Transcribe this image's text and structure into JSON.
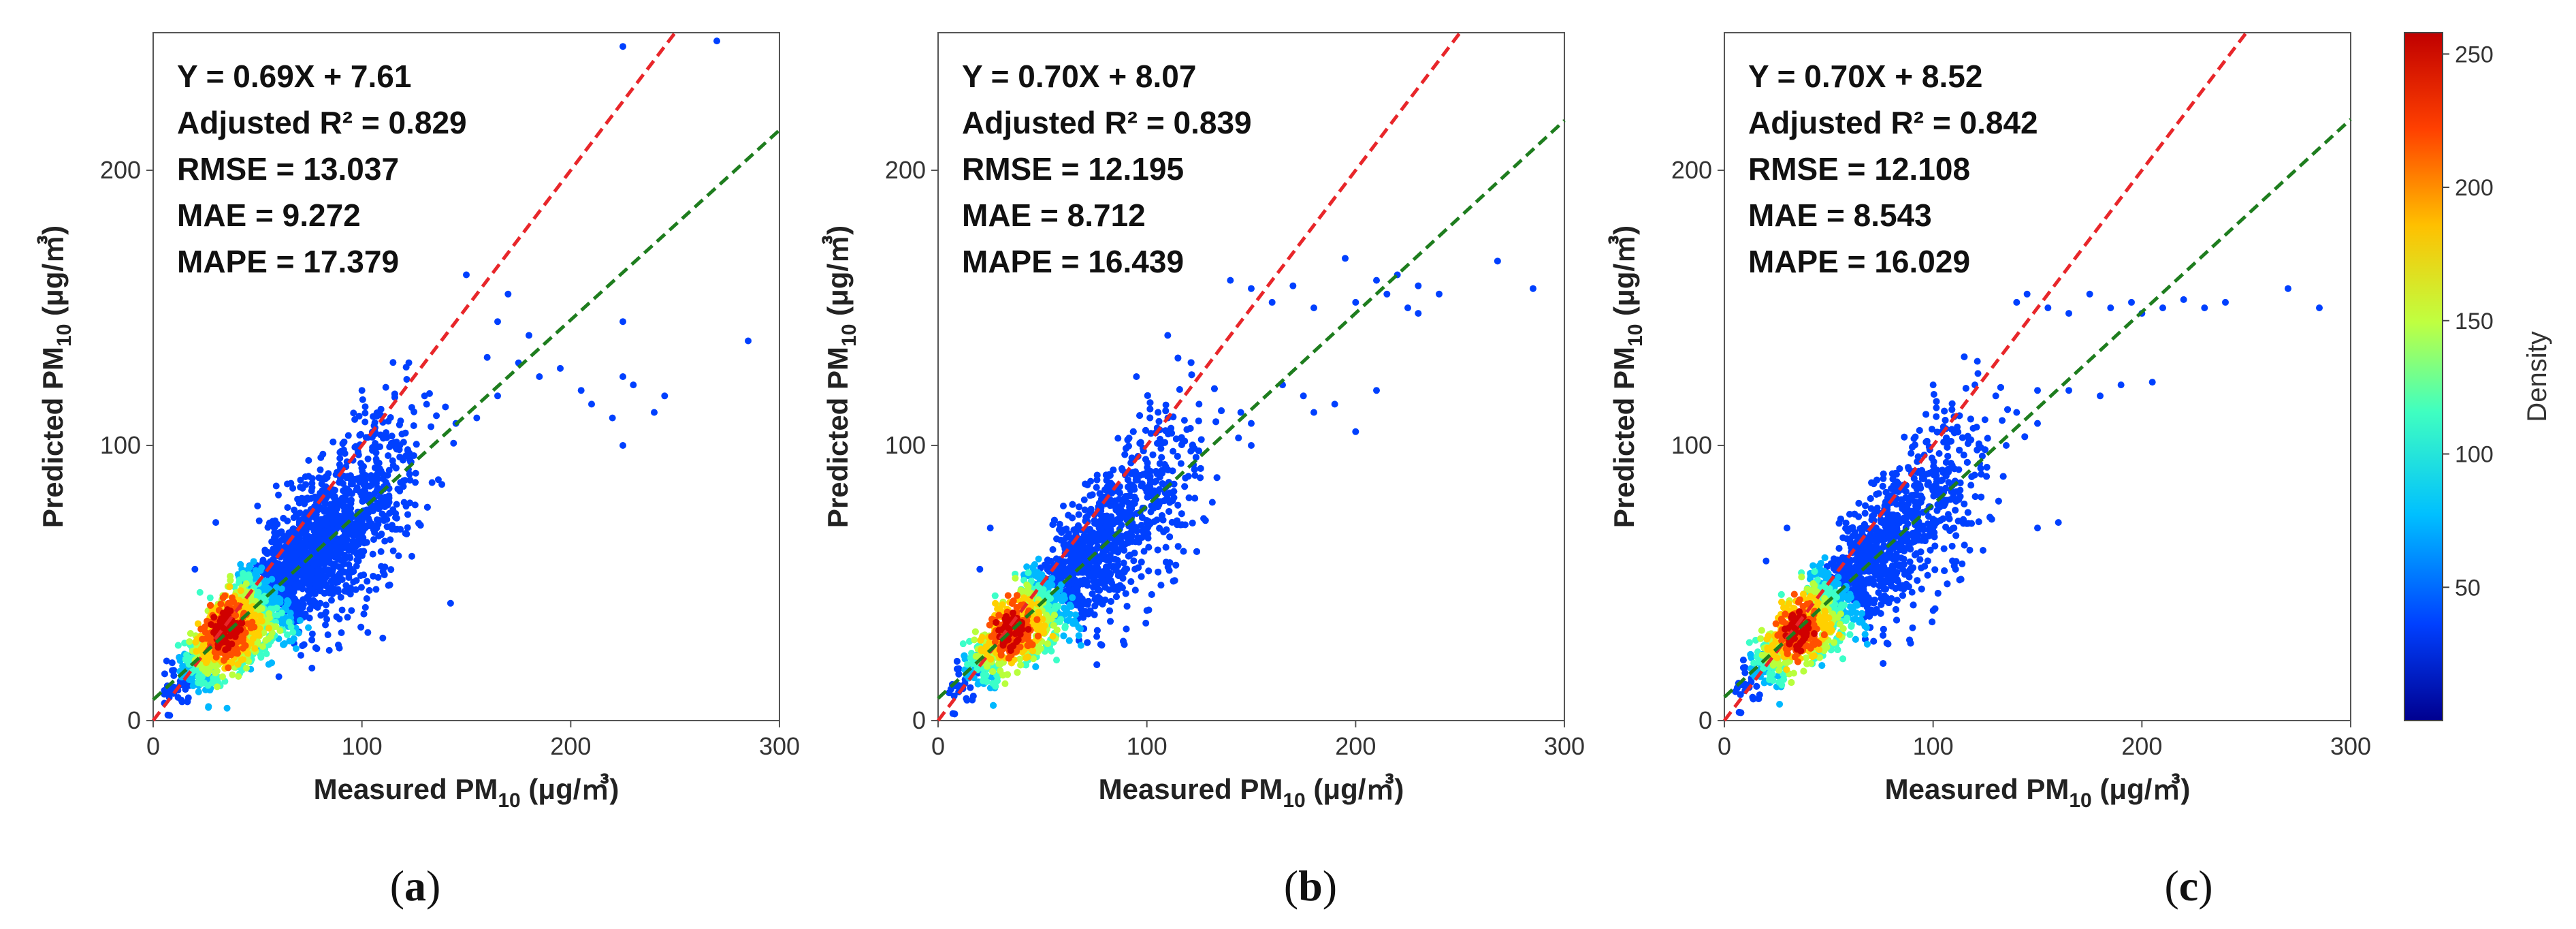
{
  "colorbar": {
    "label": "Density",
    "ticks": [
      50,
      100,
      150,
      200,
      250
    ],
    "range": [
      0,
      258
    ],
    "colors": [
      "#00008f",
      "#0040ff",
      "#00c0ff",
      "#40ffc0",
      "#c0ff40",
      "#ffc000",
      "#ff4000",
      "#c00000"
    ]
  },
  "colors": {
    "one_to_one": "#e8262a",
    "fit": "#1e7d1e",
    "points_low": "#0b0b9a"
  },
  "chart_data": [
    {
      "type": "scatter",
      "panel_label": "(a)",
      "panel_letter": "a",
      "xlabel": "Measured PM",
      "ylabel": "Predicted PM",
      "subscript": "10",
      "unit": "(μg/㎥)",
      "xlim": [
        0,
        300
      ],
      "ylim": [
        0,
        250
      ],
      "xticks": [
        0,
        100,
        200,
        300
      ],
      "yticks": [
        0,
        100,
        200
      ],
      "fit": {
        "slope": 0.69,
        "intercept": 7.61
      },
      "stats": [
        "Y = 0.69X + 7.61",
        "Adjusted R² = 0.829",
        "RMSE = 13.037",
        "MAE = 9.272",
        "MAPE = 17.379"
      ],
      "outliers": [
        [
          225,
          245
        ],
        [
          270,
          247
        ],
        [
          285,
          138
        ],
        [
          150,
          162
        ],
        [
          170,
          155
        ],
        [
          165,
          145
        ],
        [
          180,
          140
        ],
        [
          210,
          115
        ],
        [
          225,
          125
        ],
        [
          230,
          122
        ],
        [
          225,
          100
        ],
        [
          240,
          112
        ],
        [
          245,
          118
        ],
        [
          220,
          110
        ],
        [
          195,
          128
        ],
        [
          205,
          120
        ],
        [
          165,
          118
        ],
        [
          185,
          125
        ],
        [
          160,
          132
        ],
        [
          175,
          130
        ],
        [
          155,
          110
        ],
        [
          130,
          118
        ],
        [
          140,
          114
        ],
        [
          145,
          108
        ],
        [
          100,
          120
        ],
        [
          50,
          78
        ],
        [
          60,
          82
        ],
        [
          30,
          72
        ],
        [
          20,
          55
        ],
        [
          110,
          30
        ],
        [
          95,
          40
        ],
        [
          225,
          145
        ]
      ]
    },
    {
      "type": "scatter",
      "panel_label": "(b)",
      "panel_letter": "b",
      "xlabel": "Measured PM",
      "ylabel": "Predicted PM",
      "subscript": "10",
      "unit": "(μg/㎥)",
      "xlim": [
        0,
        300
      ],
      "ylim": [
        0,
        250
      ],
      "xticks": [
        0,
        100,
        200,
        300
      ],
      "yticks": [
        0,
        100,
        200
      ],
      "fit": {
        "slope": 0.7,
        "intercept": 8.07
      },
      "stats": [
        "Y = 0.70X + 8.07",
        "Adjusted R² = 0.839",
        "RMSE = 12.195",
        "MAE = 8.712",
        "MAPE = 16.439"
      ],
      "outliers": [
        [
          268,
          167
        ],
        [
          285,
          157
        ],
        [
          140,
          160
        ],
        [
          150,
          157
        ],
        [
          160,
          152
        ],
        [
          170,
          158
        ],
        [
          180,
          150
        ],
        [
          195,
          168
        ],
        [
          210,
          160
        ],
        [
          215,
          155
        ],
        [
          220,
          162
        ],
        [
          230,
          158
        ],
        [
          240,
          155
        ],
        [
          200,
          152
        ],
        [
          225,
          150
        ],
        [
          230,
          148
        ],
        [
          175,
          118
        ],
        [
          180,
          112
        ],
        [
          190,
          115
        ],
        [
          200,
          105
        ],
        [
          210,
          120
        ],
        [
          165,
          122
        ],
        [
          150,
          100
        ],
        [
          95,
          125
        ],
        [
          110,
          140
        ],
        [
          60,
          78
        ],
        [
          25,
          70
        ],
        [
          20,
          55
        ],
        [
          100,
          40
        ],
        [
          145,
          112
        ],
        [
          150,
          108
        ],
        [
          125,
          115
        ]
      ]
    },
    {
      "type": "scatter",
      "panel_label": "(c)",
      "panel_letter": "c",
      "xlabel": "Measured PM",
      "ylabel": "Predicted PM",
      "subscript": "10",
      "unit": "(μg/㎥)",
      "xlim": [
        0,
        300
      ],
      "ylim": [
        0,
        250
      ],
      "xticks": [
        0,
        100,
        200,
        300
      ],
      "yticks": [
        0,
        100,
        200
      ],
      "fit": {
        "slope": 0.7,
        "intercept": 8.52
      },
      "stats": [
        "Y = 0.70X + 8.52",
        "Adjusted R² = 0.842",
        "RMSE = 12.108",
        "MAE = 8.543",
        "MAPE = 16.029"
      ],
      "outliers": [
        [
          270,
          157
        ],
        [
          285,
          150
        ],
        [
          140,
          152
        ],
        [
          145,
          155
        ],
        [
          155,
          150
        ],
        [
          165,
          148
        ],
        [
          175,
          155
        ],
        [
          185,
          150
        ],
        [
          195,
          152
        ],
        [
          210,
          150
        ],
        [
          220,
          153
        ],
        [
          230,
          150
        ],
        [
          240,
          152
        ],
        [
          200,
          148
        ],
        [
          205,
          123
        ],
        [
          190,
          122
        ],
        [
          180,
          118
        ],
        [
          165,
          120
        ],
        [
          150,
          120
        ],
        [
          100,
          122
        ],
        [
          120,
          122
        ],
        [
          130,
          118
        ],
        [
          140,
          112
        ],
        [
          150,
          108
        ],
        [
          60,
          75
        ],
        [
          30,
          70
        ],
        [
          20,
          58
        ],
        [
          100,
          40
        ],
        [
          150,
          70
        ],
        [
          160,
          72
        ],
        [
          110,
          70
        ],
        [
          135,
          100
        ]
      ]
    }
  ]
}
